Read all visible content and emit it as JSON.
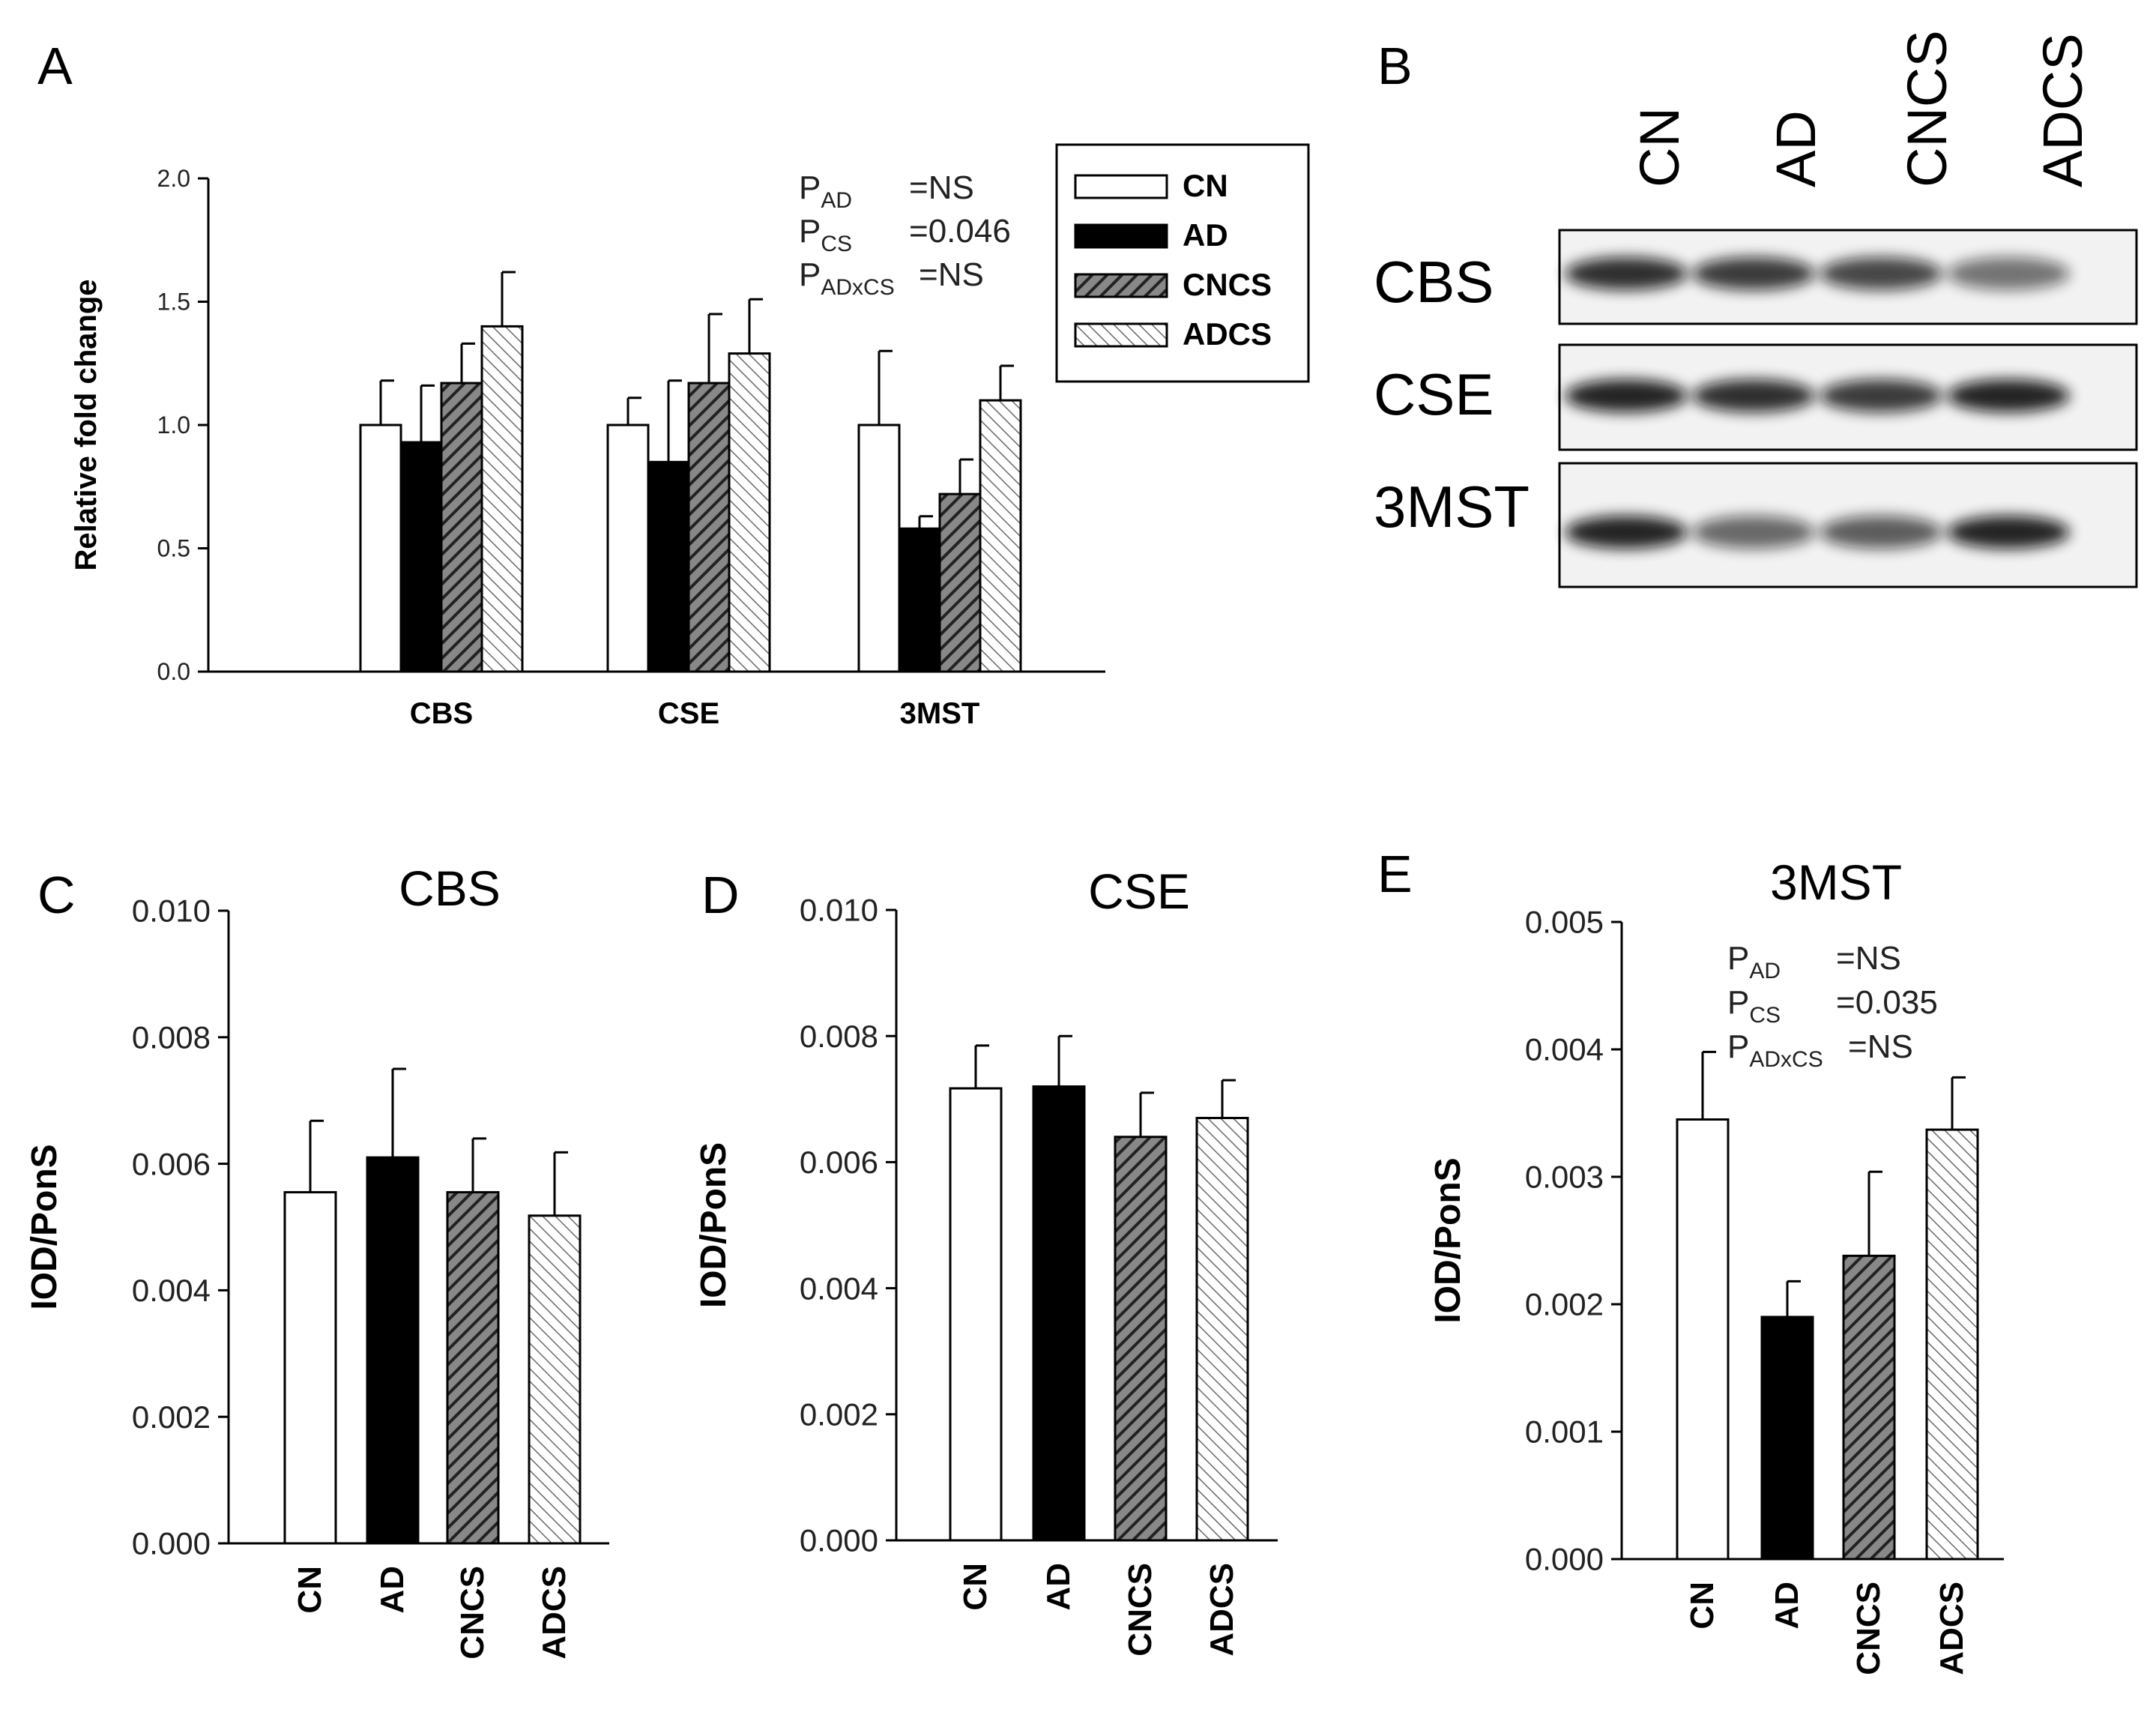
{
  "panels": {
    "A": "A",
    "B": "B",
    "C": "C",
    "D": "D",
    "E": "E"
  },
  "colors": {
    "CN": "#ffffff",
    "AD": "#000000",
    "CNCS": "#555555",
    "ADCS": "#cfcfcf",
    "axis": "#000000"
  },
  "groups": [
    "CN",
    "AD",
    "CNCS",
    "ADCS"
  ],
  "stats_A": {
    "lines": [
      {
        "p": "P",
        "sub": "AD",
        "val": "=NS"
      },
      {
        "p": "P",
        "sub": "CS",
        "val": "=0.046"
      },
      {
        "p": "P",
        "sub": "ADxCS",
        "val": "=NS"
      }
    ]
  },
  "stats_E": {
    "lines": [
      {
        "p": "P",
        "sub": "AD",
        "val": "=NS"
      },
      {
        "p": "P",
        "sub": "CS",
        "val": "=0.035"
      },
      {
        "p": "P",
        "sub": "ADxCS",
        "val": "=NS"
      }
    ]
  },
  "blot": {
    "lanes": [
      "CN",
      "AD",
      "CNCS",
      "ADCS"
    ],
    "rows": [
      "CBS",
      "CSE",
      "3MST"
    ],
    "intensity": {
      "CBS": [
        0.85,
        0.8,
        0.75,
        0.55
      ],
      "CSE": [
        0.9,
        0.85,
        0.8,
        0.9
      ],
      "3MST": [
        0.9,
        0.6,
        0.65,
        0.9
      ]
    }
  },
  "chart_data": [
    {
      "id": "A",
      "type": "bar",
      "ylabel": "Relative fold change",
      "xlabel": "",
      "ylim": [
        0,
        2
      ],
      "yticks": [
        "0.0",
        "0.5",
        "1.0",
        "1.5",
        "2.0"
      ],
      "categories": [
        "CBS",
        "CSE",
        "3MST"
      ],
      "series": [
        {
          "name": "CN",
          "values": [
            1.0,
            1.0,
            1.0
          ],
          "errors": [
            0.18,
            0.11,
            0.3
          ]
        },
        {
          "name": "AD",
          "values": [
            0.93,
            0.85,
            0.58
          ],
          "errors": [
            0.23,
            0.33,
            0.05
          ]
        },
        {
          "name": "CNCS",
          "values": [
            1.17,
            1.17,
            0.72
          ],
          "errors": [
            0.16,
            0.28,
            0.14
          ]
        },
        {
          "name": "ADCS",
          "values": [
            1.4,
            1.29,
            1.1
          ],
          "errors": [
            0.22,
            0.22,
            0.14
          ]
        }
      ],
      "legend": "top-right"
    },
    {
      "id": "C",
      "type": "bar",
      "title": "CBS",
      "ylabel": "IOD/PonS",
      "xlabel": "",
      "ylim": [
        0,
        0.01
      ],
      "yticks": [
        "0.000",
        "0.002",
        "0.004",
        "0.006",
        "0.008",
        "0.010"
      ],
      "categories": [
        "CN",
        "AD",
        "CNCS",
        "ADCS"
      ],
      "values": [
        0.00555,
        0.0061,
        0.00555,
        0.00518
      ],
      "errors": [
        0.00113,
        0.0014,
        0.00085,
        0.001
      ]
    },
    {
      "id": "D",
      "type": "bar",
      "title": "CSE",
      "ylabel": "IOD/PonS",
      "xlabel": "",
      "ylim": [
        0,
        0.01
      ],
      "yticks": [
        "0.000",
        "0.002",
        "0.004",
        "0.006",
        "0.008",
        "0.010"
      ],
      "categories": [
        "CN",
        "AD",
        "CNCS",
        "ADCS"
      ],
      "values": [
        0.00717,
        0.0072,
        0.0064,
        0.0067
      ],
      "errors": [
        0.00068,
        0.0008,
        0.0007,
        0.0006
      ]
    },
    {
      "id": "E",
      "type": "bar",
      "title": "3MST",
      "ylabel": "IOD/PonS",
      "xlabel": "",
      "ylim": [
        0,
        0.005
      ],
      "yticks": [
        "0.000",
        "0.001",
        "0.002",
        "0.003",
        "0.004",
        "0.005"
      ],
      "categories": [
        "CN",
        "AD",
        "CNCS",
        "ADCS"
      ],
      "values": [
        0.00345,
        0.0019,
        0.00238,
        0.00337
      ],
      "errors": [
        0.00053,
        0.00028,
        0.00066,
        0.00041
      ]
    }
  ]
}
